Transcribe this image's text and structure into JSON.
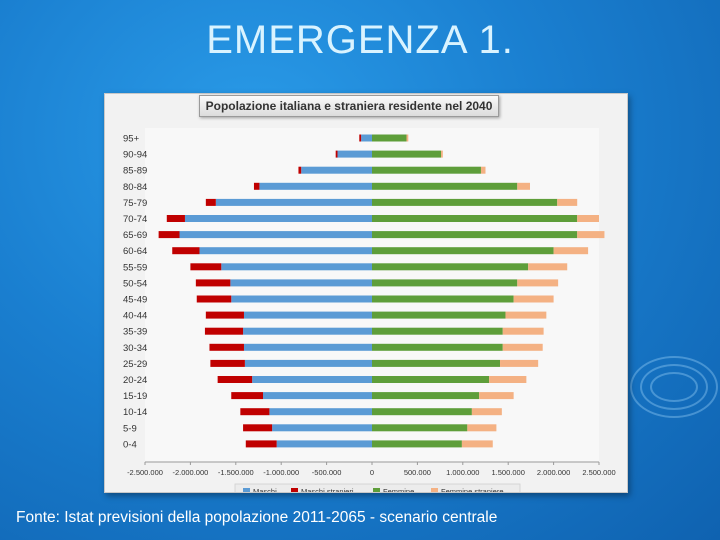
{
  "slide": {
    "title": "EMERGENZA 1.",
    "footer": "Fonte: Istat previsioni della popolazione 2011-2065 - scenario centrale"
  },
  "chart_data": {
    "type": "bar",
    "orientation": "horizontal",
    "stacked": true,
    "title": "Popolazione italiana e straniera residente nel 2040",
    "xlim": [
      -2500000,
      2500000
    ],
    "x_ticks": [
      -2500000,
      -2000000,
      -1500000,
      -1000000,
      -500000,
      0,
      500000,
      1000000,
      1500000,
      2000000,
      2500000
    ],
    "x_tick_labels": [
      "-2.500.000",
      "-2.000.000",
      "-1.500.000",
      "-1.000.000",
      "-500.000",
      "0",
      "500.000",
      "1.000.000",
      "1.500.000",
      "2.000.000",
      "2.500.000"
    ],
    "legend_position": "bottom",
    "categories": [
      "95+",
      "90-94",
      "85-89",
      "80-84",
      "75-79",
      "70-74",
      "65-69",
      "60-64",
      "55-59",
      "50-54",
      "45-49",
      "40-44",
      "35-39",
      "30-34",
      "25-29",
      "20-24",
      "15-19",
      "10-14",
      "5-9",
      "0-4"
    ],
    "series": [
      {
        "name": "Maschi",
        "color": "#5b9bd5",
        "values": [
          -120000,
          -380000,
          -780000,
          -1240000,
          -1720000,
          -2060000,
          -2120000,
          -1900000,
          -1660000,
          -1560000,
          -1550000,
          -1410000,
          -1420000,
          -1410000,
          -1400000,
          -1320000,
          -1200000,
          -1130000,
          -1100000,
          -1050000
        ]
      },
      {
        "name": "Maschi stranieri",
        "color": "#c00000",
        "values": [
          -20000,
          -20000,
          -30000,
          -60000,
          -110000,
          -200000,
          -230000,
          -300000,
          -340000,
          -380000,
          -380000,
          -420000,
          -420000,
          -380000,
          -380000,
          -380000,
          -350000,
          -320000,
          -320000,
          -340000
        ]
      },
      {
        "name": "Femmine",
        "color": "#5e9e3a",
        "values": [
          380000,
          760000,
          1200000,
          1600000,
          2040000,
          2260000,
          2260000,
          2000000,
          1720000,
          1600000,
          1560000,
          1470000,
          1440000,
          1440000,
          1410000,
          1290000,
          1180000,
          1100000,
          1050000,
          990000
        ]
      },
      {
        "name": "Femmine straniere",
        "color": "#f4b183",
        "values": [
          20000,
          20000,
          50000,
          140000,
          220000,
          240000,
          300000,
          380000,
          430000,
          450000,
          440000,
          450000,
          450000,
          440000,
          420000,
          410000,
          380000,
          330000,
          320000,
          340000
        ]
      }
    ]
  }
}
